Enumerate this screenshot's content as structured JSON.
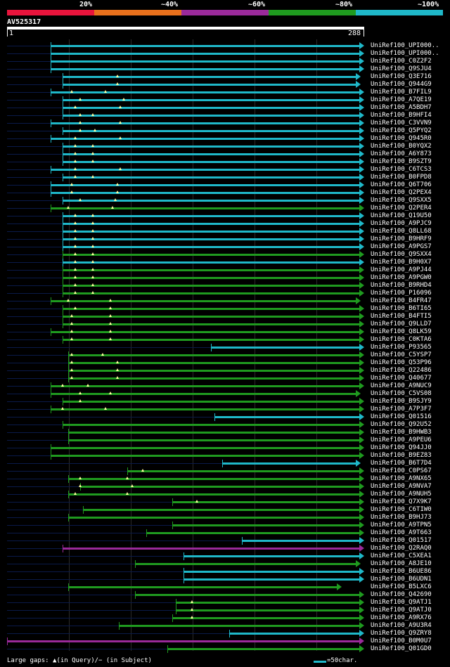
{
  "identity_scale": {
    "labels": [
      "20%",
      "~40%",
      "~60%",
      "~80%",
      "~100%"
    ],
    "colors": [
      "#e8143c",
      "#e8701c",
      "#9a2a9a",
      "#1f9a1f",
      "#1fb8c9"
    ]
  },
  "query": {
    "name": "AV525317",
    "start_label": "1",
    "end_label": "288",
    "length": 288
  },
  "colors": {
    "faint": "#0a1a4a",
    "cyan": "#1fb8c9",
    "green": "#1f9a1f",
    "purple": "#9a2a9a",
    "gap_marker": "#ffffa0"
  },
  "hits": [
    {
      "label": "UniRef100_UPI000..",
      "color": "cyan",
      "start": 36,
      "end": 288,
      "arrow": true,
      "gaps": []
    },
    {
      "label": "UniRef100_UPI000..",
      "color": "cyan",
      "start": 36,
      "end": 288,
      "arrow": true,
      "gaps": []
    },
    {
      "label": "UniRef100_C0Z2F2",
      "color": "cyan",
      "start": 36,
      "end": 288,
      "arrow": true,
      "gaps": []
    },
    {
      "label": "UniRef100_Q9SJU4",
      "color": "cyan",
      "start": 36,
      "end": 288,
      "arrow": true,
      "gaps": []
    },
    {
      "label": "UniRef100_Q3E716",
      "color": "cyan",
      "start": 46,
      "end": 285,
      "arrow": true,
      "gaps": [
        90
      ]
    },
    {
      "label": "UniRef100_Q944G9",
      "color": "cyan",
      "start": 46,
      "end": 285,
      "arrow": true,
      "gaps": [
        90
      ]
    },
    {
      "label": "UniRef100_B7FIL9",
      "color": "cyan",
      "start": 36,
      "end": 288,
      "arrow": true,
      "gaps": [
        53,
        80
      ]
    },
    {
      "label": "UniRef100_A7QE19",
      "color": "cyan",
      "start": 46,
      "end": 288,
      "arrow": true,
      "gaps": [
        60,
        95
      ]
    },
    {
      "label": "UniRef100_A5BDH7",
      "color": "cyan",
      "start": 46,
      "end": 288,
      "arrow": true,
      "gaps": [
        56,
        92
      ]
    },
    {
      "label": "UniRef100_B9HFI4",
      "color": "cyan",
      "start": 46,
      "end": 288,
      "arrow": true,
      "gaps": [
        60,
        70
      ]
    },
    {
      "label": "UniRef100_C3VVN9",
      "color": "cyan",
      "start": 36,
      "end": 288,
      "arrow": true,
      "gaps": [
        60,
        92
      ]
    },
    {
      "label": "UniRef100_Q5PYQ2",
      "color": "cyan",
      "start": 46,
      "end": 288,
      "arrow": true,
      "gaps": [
        60,
        72
      ]
    },
    {
      "label": "UniRef100_Q945R0",
      "color": "cyan",
      "start": 36,
      "end": 288,
      "arrow": true,
      "gaps": [
        56,
        92
      ]
    },
    {
      "label": "UniRef100_B0YQX2",
      "color": "cyan",
      "start": 46,
      "end": 288,
      "arrow": true,
      "gaps": [
        56,
        70
      ]
    },
    {
      "label": "UniRef100_A6Y873",
      "color": "cyan",
      "start": 46,
      "end": 288,
      "arrow": true,
      "gaps": [
        56,
        70
      ]
    },
    {
      "label": "UniRef100_B9SZT9",
      "color": "cyan",
      "start": 46,
      "end": 288,
      "arrow": true,
      "gaps": [
        56,
        70
      ]
    },
    {
      "label": "UniRef100_C6TCS3",
      "color": "cyan",
      "start": 36,
      "end": 288,
      "arrow": true,
      "gaps": [
        56,
        92
      ]
    },
    {
      "label": "UniRef100_B0FPD8",
      "color": "cyan",
      "start": 46,
      "end": 288,
      "arrow": true,
      "gaps": [
        56,
        70
      ]
    },
    {
      "label": "UniRef100_Q6T706",
      "color": "cyan",
      "start": 36,
      "end": 288,
      "arrow": true,
      "gaps": [
        53,
        90
      ]
    },
    {
      "label": "UniRef100_Q2PEX4",
      "color": "cyan",
      "start": 36,
      "end": 288,
      "arrow": true,
      "gaps": [
        53,
        90
      ]
    },
    {
      "label": "UniRef100_Q9SXX5",
      "color": "cyan",
      "start": 46,
      "end": 288,
      "arrow": true,
      "gaps": [
        60,
        88
      ]
    },
    {
      "label": "UniRef100_Q2PER4",
      "color": "green",
      "start": 36,
      "end": 288,
      "arrow": true,
      "gaps": [
        50,
        86
      ]
    },
    {
      "label": "UniRef100_Q19U50",
      "color": "cyan",
      "start": 46,
      "end": 288,
      "arrow": true,
      "gaps": [
        56,
        70
      ]
    },
    {
      "label": "UniRef100_A9PJC9",
      "color": "cyan",
      "start": 46,
      "end": 288,
      "arrow": true,
      "gaps": [
        56,
        70
      ]
    },
    {
      "label": "UniRef100_Q8LL68",
      "color": "cyan",
      "start": 46,
      "end": 288,
      "arrow": true,
      "gaps": [
        56,
        70
      ]
    },
    {
      "label": "UniRef100_B9HRF9",
      "color": "cyan",
      "start": 46,
      "end": 288,
      "arrow": true,
      "gaps": [
        56,
        70
      ]
    },
    {
      "label": "UniRef100_A9PGS7",
      "color": "cyan",
      "start": 46,
      "end": 288,
      "arrow": true,
      "gaps": [
        56,
        70
      ]
    },
    {
      "label": "UniRef100_Q9SXX4",
      "color": "green",
      "start": 46,
      "end": 288,
      "arrow": true,
      "gaps": [
        56,
        70
      ]
    },
    {
      "label": "UniRef100_B9H0X7",
      "color": "cyan",
      "start": 46,
      "end": 288,
      "arrow": true,
      "gaps": [
        56,
        70
      ]
    },
    {
      "label": "UniRef100_A9PJ44",
      "color": "green",
      "start": 46,
      "end": 288,
      "arrow": true,
      "gaps": [
        56,
        70
      ]
    },
    {
      "label": "UniRef100_A9PGW0",
      "color": "green",
      "start": 46,
      "end": 288,
      "arrow": true,
      "gaps": [
        56,
        70
      ]
    },
    {
      "label": "UniRef100_B9RHD4",
      "color": "green",
      "start": 46,
      "end": 288,
      "arrow": true,
      "gaps": [
        56,
        70
      ]
    },
    {
      "label": "UniRef100_P16096",
      "color": "green",
      "start": 46,
      "end": 288,
      "arrow": true,
      "gaps": [
        56,
        70
      ]
    },
    {
      "label": "UniRef100_B4FR47",
      "color": "green",
      "start": 36,
      "end": 285,
      "arrow": true,
      "gaps": [
        50,
        84
      ]
    },
    {
      "label": "UniRef100_B6TI65",
      "color": "green",
      "start": 46,
      "end": 288,
      "arrow": true,
      "gaps": [
        56,
        84
      ]
    },
    {
      "label": "UniRef100_B4FTI5",
      "color": "green",
      "start": 46,
      "end": 288,
      "arrow": true,
      "gaps": [
        53,
        84
      ]
    },
    {
      "label": "UniRef100_Q9LLD7",
      "color": "green",
      "start": 46,
      "end": 288,
      "arrow": true,
      "gaps": [
        53,
        84
      ]
    },
    {
      "label": "UniRef100_Q8LK59",
      "color": "green",
      "start": 36,
      "end": 288,
      "arrow": true,
      "gaps": [
        53,
        84
      ]
    },
    {
      "label": "UniRef100_C0KTA6",
      "color": "green",
      "start": 46,
      "end": 288,
      "arrow": true,
      "gaps": [
        53,
        84
      ]
    },
    {
      "label": "UniRef100_P93565",
      "color": "cyan",
      "start": 165,
      "end": 288,
      "arrow": true,
      "gaps": []
    },
    {
      "label": "UniRef100_C5YSP7",
      "color": "green",
      "start": 50,
      "end": 288,
      "arrow": true,
      "gaps": [
        53,
        78
      ]
    },
    {
      "label": "UniRef100_Q53P96",
      "color": "green",
      "start": 50,
      "end": 288,
      "arrow": true,
      "gaps": [
        53,
        90
      ]
    },
    {
      "label": "UniRef100_Q22486",
      "color": "green",
      "start": 50,
      "end": 288,
      "arrow": true,
      "gaps": [
        53,
        90
      ]
    },
    {
      "label": "UniRef100_Q40677",
      "color": "green",
      "start": 50,
      "end": 288,
      "arrow": true,
      "gaps": [
        53,
        90
      ]
    },
    {
      "label": "UniRef100_A9NUC9",
      "color": "green",
      "start": 36,
      "end": 288,
      "arrow": true,
      "gaps": [
        46,
        66
      ]
    },
    {
      "label": "UniRef100_C5VS08",
      "color": "green",
      "start": 36,
      "end": 285,
      "arrow": true,
      "gaps": [
        60,
        84
      ]
    },
    {
      "label": "UniRef100_B9SJY9",
      "color": "green",
      "start": 46,
      "end": 288,
      "arrow": true,
      "gaps": [
        60
      ]
    },
    {
      "label": "UniRef100_A7P3F7",
      "color": "green",
      "start": 36,
      "end": 288,
      "arrow": true,
      "gaps": [
        46,
        80
      ]
    },
    {
      "label": "UniRef100_Q01516",
      "color": "cyan",
      "start": 168,
      "end": 288,
      "arrow": true,
      "gaps": []
    },
    {
      "label": "UniRef100_Q92U52",
      "color": "green",
      "start": 46,
      "end": 288,
      "arrow": true,
      "gaps": []
    },
    {
      "label": "UniRef100_B9HWB3",
      "color": "green",
      "start": 50,
      "end": 288,
      "arrow": true,
      "gaps": []
    },
    {
      "label": "UniRef100_A9PEU6",
      "color": "green",
      "start": 50,
      "end": 288,
      "arrow": true,
      "gaps": []
    },
    {
      "label": "UniRef100_Q94JJ0",
      "color": "green",
      "start": 36,
      "end": 288,
      "arrow": true,
      "gaps": []
    },
    {
      "label": "UniRef100_B9EZ83",
      "color": "green",
      "start": 36,
      "end": 288,
      "arrow": true,
      "gaps": []
    },
    {
      "label": "UniRef100_B6T7D4",
      "color": "cyan",
      "start": 174,
      "end": 285,
      "arrow": true,
      "gaps": []
    },
    {
      "label": "UniRef100_C0PS67",
      "color": "green",
      "start": 98,
      "end": 288,
      "arrow": true,
      "gaps": [
        110
      ]
    },
    {
      "label": "UniRef100_A9NX65",
      "color": "green",
      "start": 50,
      "end": 288,
      "arrow": true,
      "gaps": [
        60,
        98
      ]
    },
    {
      "label": "UniRef100_A9NVA7",
      "color": "green",
      "start": 60,
      "end": 288,
      "arrow": true,
      "gaps": [
        60,
        102
      ]
    },
    {
      "label": "UniRef100_A9NUH5",
      "color": "green",
      "start": 50,
      "end": 288,
      "arrow": true,
      "gaps": [
        56,
        98
      ]
    },
    {
      "label": "UniRef100_Q7X9K7",
      "color": "green",
      "start": 134,
      "end": 288,
      "arrow": true,
      "gaps": [
        154
      ]
    },
    {
      "label": "UniRef100_C6TIW0",
      "color": "green",
      "start": 62,
      "end": 288,
      "arrow": true,
      "gaps": []
    },
    {
      "label": "UniRef100_B9HJ73",
      "color": "green",
      "start": 50,
      "end": 288,
      "arrow": true,
      "gaps": []
    },
    {
      "label": "UniRef100_A9TPN5",
      "color": "green",
      "start": 134,
      "end": 288,
      "arrow": true,
      "gaps": []
    },
    {
      "label": "UniRef100_A9T663",
      "color": "green",
      "start": 113,
      "end": 288,
      "arrow": true,
      "gaps": []
    },
    {
      "label": "UniRef100_Q01517",
      "color": "cyan",
      "start": 190,
      "end": 288,
      "arrow": true,
      "gaps": []
    },
    {
      "label": "UniRef100_Q2RAQ0",
      "color": "purple",
      "start": 46,
      "end": 288,
      "arrow": true,
      "gaps": []
    },
    {
      "label": "UniRef100_C5XEA1",
      "color": "cyan",
      "start": 143,
      "end": 288,
      "arrow": true,
      "gaps": []
    },
    {
      "label": "UniRef100_A8JE10",
      "color": "green",
      "start": 104,
      "end": 285,
      "arrow": true,
      "gaps": []
    },
    {
      "label": "UniRef100_B6UE86",
      "color": "cyan",
      "start": 143,
      "end": 288,
      "arrow": true,
      "gaps": []
    },
    {
      "label": "UniRef100_B6UDN1",
      "color": "cyan",
      "start": 143,
      "end": 288,
      "arrow": true,
      "gaps": []
    },
    {
      "label": "UniRef100_B5LXC6",
      "color": "green",
      "start": 50,
      "end": 270,
      "arrow": true,
      "gaps": []
    },
    {
      "label": "UniRef100_Q42690",
      "color": "green",
      "start": 104,
      "end": 288,
      "arrow": true,
      "gaps": []
    },
    {
      "label": "UniRef100_Q9ATJ1",
      "color": "green",
      "start": 137,
      "end": 288,
      "arrow": true,
      "gaps": [
        150
      ]
    },
    {
      "label": "UniRef100_Q9ATJ0",
      "color": "green",
      "start": 137,
      "end": 288,
      "arrow": true,
      "gaps": [
        150
      ]
    },
    {
      "label": "UniRef100_A9RX76",
      "color": "green",
      "start": 134,
      "end": 288,
      "arrow": true,
      "gaps": [
        150
      ]
    },
    {
      "label": "UniRef100_A9U3R4",
      "color": "green",
      "start": 91,
      "end": 288,
      "arrow": true,
      "gaps": []
    },
    {
      "label": "UniRef100_Q9ZRY8",
      "color": "cyan",
      "start": 180,
      "end": 288,
      "arrow": true,
      "gaps": []
    },
    {
      "label": "UniRef100_B0M0U7",
      "color": "purple",
      "start": 1,
      "end": 288,
      "arrow": true,
      "gaps": []
    },
    {
      "label": "UniRef100_Q01GD0",
      "color": "green",
      "start": 130,
      "end": 288,
      "arrow": true,
      "gaps": []
    }
  ],
  "footer": {
    "legend": "Large gaps: ▲(in Query)/− (in Subject)",
    "scale": "=50char."
  }
}
